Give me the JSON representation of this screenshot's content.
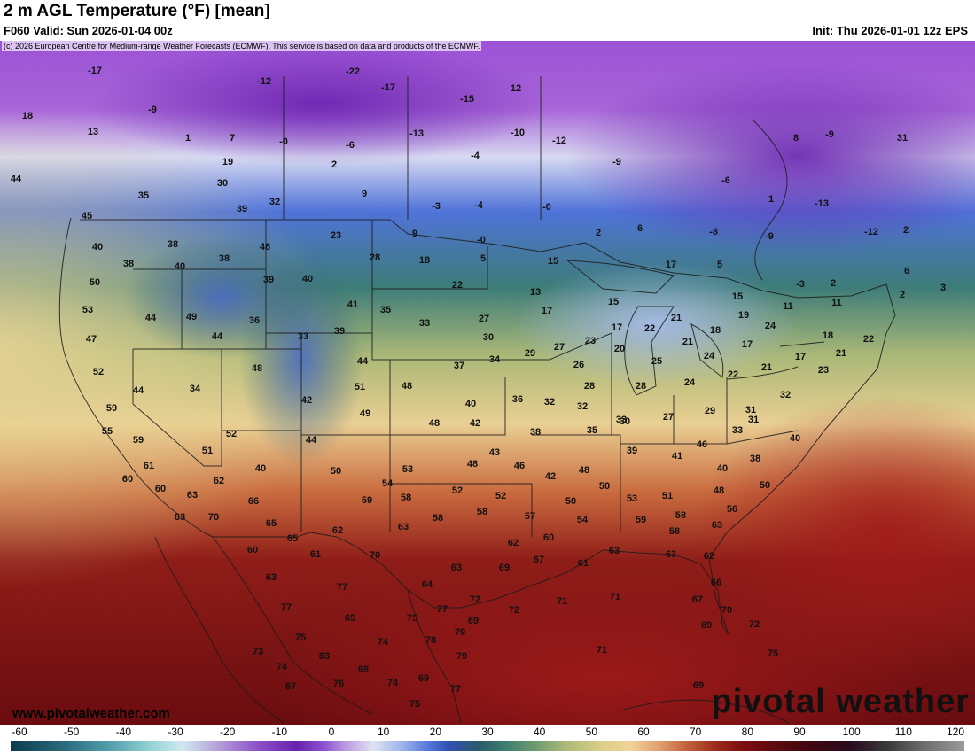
{
  "header": {
    "title": "2 m AGL Temperature (°F) [mean]",
    "valid": "F060 Valid: Sun 2026-01-04 00z",
    "init": "Init: Thu 2026-01-01 12z EPS"
  },
  "map": {
    "copyright": "(c) 2026 European Centre for Medium-range Weather Forecasts (ECMWF). This service is based on data and products of the ECMWF.",
    "site_url": "www.pivotalweather.com",
    "brand": "pivotal weather",
    "value_labels": [
      {
        "v": "-17"
      },
      {
        "v": "-12"
      },
      {
        "v": "-22"
      },
      {
        "v": "-17"
      },
      {
        "v": "12"
      },
      {
        "v": "-15"
      },
      {
        "v": "18"
      },
      {
        "v": "-9"
      },
      {
        "v": "13"
      },
      {
        "v": "1"
      },
      {
        "v": "7"
      },
      {
        "v": "-0"
      },
      {
        "v": "-6"
      },
      {
        "v": "-13"
      },
      {
        "v": "-10"
      },
      {
        "v": "-12"
      },
      {
        "v": "-4"
      },
      {
        "v": "8"
      },
      {
        "v": "-9"
      },
      {
        "v": "31"
      },
      {
        "v": "19"
      },
      {
        "v": "2"
      },
      {
        "v": "-9"
      },
      {
        "v": "-6"
      },
      {
        "v": "44"
      },
      {
        "v": "30"
      },
      {
        "v": "35"
      },
      {
        "v": "9"
      },
      {
        "v": "32"
      },
      {
        "v": "-3"
      },
      {
        "v": "-4"
      },
      {
        "v": "-0"
      },
      {
        "v": "1"
      },
      {
        "v": "-13"
      },
      {
        "v": "45"
      },
      {
        "v": "39"
      },
      {
        "v": "23"
      },
      {
        "v": "9"
      },
      {
        "v": "-0"
      },
      {
        "v": "2"
      },
      {
        "v": "6"
      },
      {
        "v": "-8"
      },
      {
        "v": "-9"
      },
      {
        "v": "-12"
      },
      {
        "v": "2"
      },
      {
        "v": "40"
      },
      {
        "v": "38"
      },
      {
        "v": "46"
      },
      {
        "v": "38"
      },
      {
        "v": "28"
      },
      {
        "v": "18"
      },
      {
        "v": "5"
      },
      {
        "v": "15"
      },
      {
        "v": "17"
      },
      {
        "v": "5"
      },
      {
        "v": "6"
      },
      {
        "v": "38"
      },
      {
        "v": "40"
      },
      {
        "v": "22"
      },
      {
        "v": "50"
      },
      {
        "v": "39"
      },
      {
        "v": "40"
      },
      {
        "v": "13"
      },
      {
        "v": "-3"
      },
      {
        "v": "2"
      },
      {
        "v": "3"
      },
      {
        "v": "15"
      },
      {
        "v": "2"
      },
      {
        "v": "53"
      },
      {
        "v": "41"
      },
      {
        "v": "35"
      },
      {
        "v": "17"
      },
      {
        "v": "15"
      },
      {
        "v": "11"
      },
      {
        "v": "11"
      },
      {
        "v": "44"
      },
      {
        "v": "49"
      },
      {
        "v": "36"
      },
      {
        "v": "33"
      },
      {
        "v": "27"
      },
      {
        "v": "21"
      },
      {
        "v": "19"
      },
      {
        "v": "47"
      },
      {
        "v": "44"
      },
      {
        "v": "33"
      },
      {
        "v": "39"
      },
      {
        "v": "30"
      },
      {
        "v": "17"
      },
      {
        "v": "22"
      },
      {
        "v": "18"
      },
      {
        "v": "24"
      },
      {
        "v": "18"
      },
      {
        "v": "22"
      },
      {
        "v": "52"
      },
      {
        "v": "48"
      },
      {
        "v": "44"
      },
      {
        "v": "37"
      },
      {
        "v": "34"
      },
      {
        "v": "29"
      },
      {
        "v": "27"
      },
      {
        "v": "23"
      },
      {
        "v": "20"
      },
      {
        "v": "21"
      },
      {
        "v": "17"
      },
      {
        "v": "24"
      },
      {
        "v": "21"
      },
      {
        "v": "17"
      },
      {
        "v": "21"
      },
      {
        "v": "44"
      },
      {
        "v": "34"
      },
      {
        "v": "51"
      },
      {
        "v": "48"
      },
      {
        "v": "26"
      },
      {
        "v": "25"
      },
      {
        "v": "22"
      },
      {
        "v": "23"
      },
      {
        "v": "59"
      },
      {
        "v": "42"
      },
      {
        "v": "40"
      },
      {
        "v": "36"
      },
      {
        "v": "32"
      },
      {
        "v": "28"
      },
      {
        "v": "28"
      },
      {
        "v": "24"
      },
      {
        "v": "31"
      },
      {
        "v": "32"
      },
      {
        "v": "55"
      },
      {
        "v": "49"
      },
      {
        "v": "48"
      },
      {
        "v": "42"
      },
      {
        "v": "32"
      },
      {
        "v": "33"
      },
      {
        "v": "27"
      },
      {
        "v": "29"
      },
      {
        "v": "31"
      },
      {
        "v": "59"
      },
      {
        "v": "52"
      },
      {
        "v": "44"
      },
      {
        "v": "38"
      },
      {
        "v": "35"
      },
      {
        "v": "30"
      },
      {
        "v": "33"
      },
      {
        "v": "40"
      },
      {
        "v": "61"
      },
      {
        "v": "51"
      },
      {
        "v": "40"
      },
      {
        "v": "43"
      },
      {
        "v": "39"
      },
      {
        "v": "41"
      },
      {
        "v": "46"
      },
      {
        "v": "38"
      },
      {
        "v": "60"
      },
      {
        "v": "62"
      },
      {
        "v": "50"
      },
      {
        "v": "53"
      },
      {
        "v": "48"
      },
      {
        "v": "46"
      },
      {
        "v": "42"
      },
      {
        "v": "48"
      },
      {
        "v": "40"
      },
      {
        "v": "60"
      },
      {
        "v": "63"
      },
      {
        "v": "54"
      },
      {
        "v": "52"
      },
      {
        "v": "52"
      },
      {
        "v": "50"
      },
      {
        "v": "51"
      },
      {
        "v": "48"
      },
      {
        "v": "50"
      },
      {
        "v": "66"
      },
      {
        "v": "59"
      },
      {
        "v": "58"
      },
      {
        "v": "50"
      },
      {
        "v": "53"
      },
      {
        "v": "56"
      },
      {
        "v": "63"
      },
      {
        "v": "70"
      },
      {
        "v": "65"
      },
      {
        "v": "62"
      },
      {
        "v": "63"
      },
      {
        "v": "58"
      },
      {
        "v": "58"
      },
      {
        "v": "57"
      },
      {
        "v": "54"
      },
      {
        "v": "59"
      },
      {
        "v": "58"
      },
      {
        "v": "63"
      },
      {
        "v": "65"
      },
      {
        "v": "61"
      },
      {
        "v": "62"
      },
      {
        "v": "60"
      },
      {
        "v": "58"
      },
      {
        "v": "60"
      },
      {
        "v": "70"
      },
      {
        "v": "63"
      },
      {
        "v": "69"
      },
      {
        "v": "67"
      },
      {
        "v": "61"
      },
      {
        "v": "63"
      },
      {
        "v": "63"
      },
      {
        "v": "62"
      },
      {
        "v": "63"
      },
      {
        "v": "77"
      },
      {
        "v": "64"
      },
      {
        "v": "72"
      },
      {
        "v": "66"
      },
      {
        "v": "77"
      },
      {
        "v": "77"
      },
      {
        "v": "72"
      },
      {
        "v": "71"
      },
      {
        "v": "71"
      },
      {
        "v": "67"
      },
      {
        "v": "70"
      },
      {
        "v": "65"
      },
      {
        "v": "75"
      },
      {
        "v": "79"
      },
      {
        "v": "69"
      },
      {
        "v": "72"
      },
      {
        "v": "75"
      },
      {
        "v": "74"
      },
      {
        "v": "78"
      },
      {
        "v": "69"
      },
      {
        "v": "73"
      },
      {
        "v": "74"
      },
      {
        "v": "83"
      },
      {
        "v": "79"
      },
      {
        "v": "71"
      },
      {
        "v": "75"
      },
      {
        "v": "68"
      },
      {
        "v": "67"
      },
      {
        "v": "76"
      },
      {
        "v": "74"
      },
      {
        "v": "69"
      },
      {
        "v": "77"
      },
      {
        "v": "75"
      },
      {
        "v": "69"
      }
    ]
  },
  "colorbar": {
    "tick_labels": [
      "-60",
      "-50",
      "-40",
      "-30",
      "-20",
      "-10",
      "0",
      "10",
      "20",
      "30",
      "40",
      "50",
      "60",
      "70",
      "80",
      "90",
      "100",
      "110",
      "120"
    ],
    "units": "°F"
  }
}
